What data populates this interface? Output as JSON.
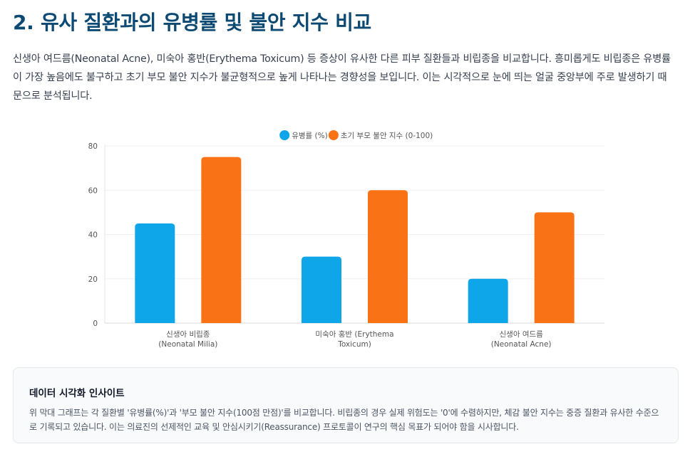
{
  "page": {
    "title": "2. 유사 질환과의 유병률 및 불안 지수 비교",
    "description": "신생아 여드름(Neonatal Acne), 미숙아 홍반(Erythema Toxicum) 등 증상이 유사한 다른 피부 질환들과 비립종을 비교합니다. 흥미롭게도 비립종은 유병률이 가장 높음에도 불구하고 초기 부모 불안 지수가 불균형적으로 높게 나타나는 경향성을 보입니다. 이는 시각적으로 눈에 띄는 얼굴 중앙부에 주로 발생하기 때문으로 분석됩니다."
  },
  "insight": {
    "title": "데이터 시각화 인사이트",
    "text": "위 막대 그래프는 각 질환별 '유병률(%)'과 '부모 불안 지수(100점 만점)'를 비교합니다. 비립종의 경우 실제 위험도는 '0'에 수렴하지만, 체감 불안 지수는 중증 질환과 유사한 수준으로 기록되고 있습니다. 이는 의료진의 선제적인 교육 및 안심시키기(Reassurance) 프로토콜이 연구의 핵심 목표가 되어야 함을 시사합니다."
  },
  "chart_data": {
    "type": "bar",
    "title": "",
    "xlabel": "",
    "ylabel": "",
    "ylim": [
      0,
      80
    ],
    "yticks": [
      0,
      20,
      40,
      60,
      80
    ],
    "grid": true,
    "legend_position": "top-center",
    "categories": [
      [
        "신생아 비립종",
        "(Neonatal Milia)"
      ],
      [
        "미숙아 홍반 (Erythema",
        "Toxicum)"
      ],
      [
        "신생아 여드름",
        "(Neonatal Acne)"
      ]
    ],
    "series": [
      {
        "name": "유병률 (%)",
        "color": "#0ea5e9",
        "values": [
          45,
          30,
          20
        ]
      },
      {
        "name": "초기 부모 불안 지수 (0-100)",
        "color": "#f97316",
        "values": [
          75,
          60,
          50
        ]
      }
    ]
  }
}
